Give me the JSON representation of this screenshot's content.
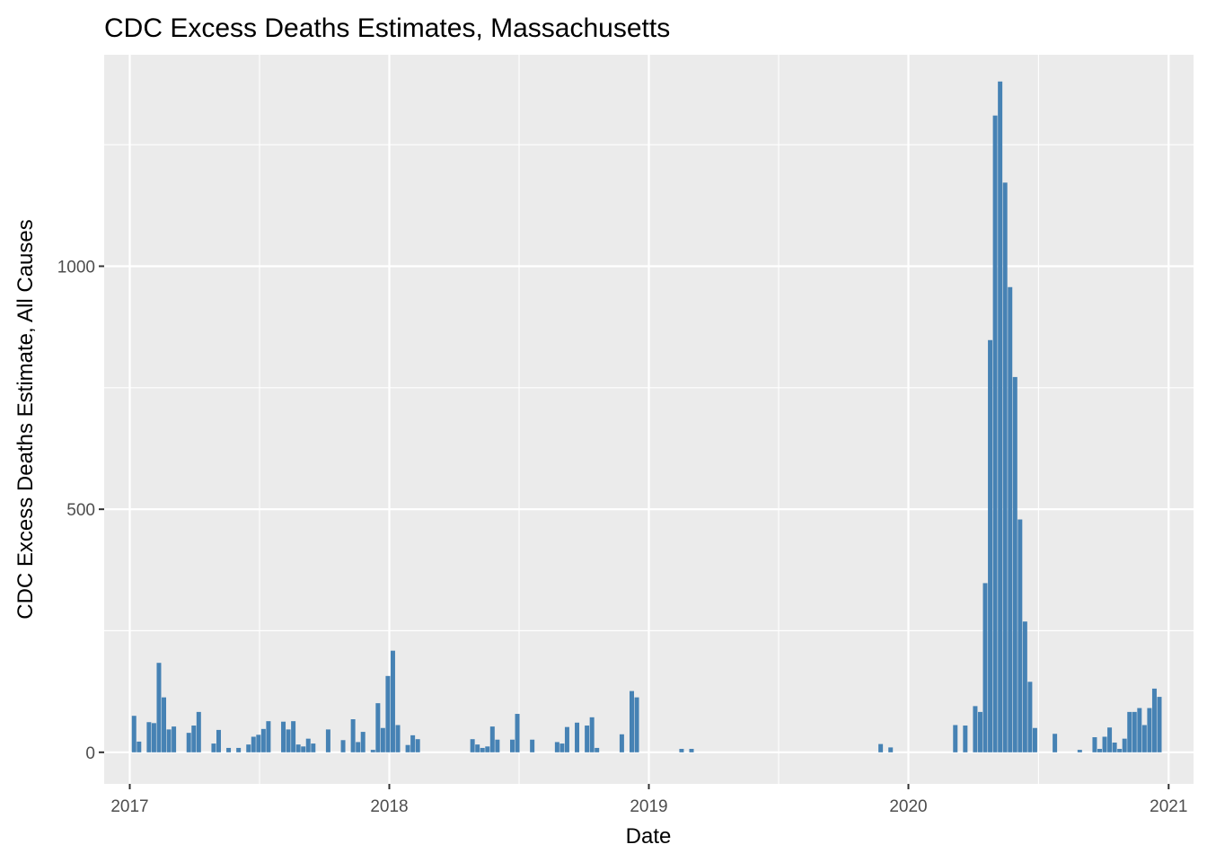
{
  "chart_data": {
    "type": "bar",
    "title": "CDC Excess Deaths Estimates, Massachusetts",
    "xlabel": "Date",
    "ylabel": "CDC Excess Deaths Estimate, All Causes",
    "x_ticks": [
      {
        "date": "2017-01-01",
        "label": "2017"
      },
      {
        "date": "2018-01-01",
        "label": "2018"
      },
      {
        "date": "2019-01-01",
        "label": "2019"
      },
      {
        "date": "2020-01-01",
        "label": "2020"
      },
      {
        "date": "2021-01-01",
        "label": "2021"
      }
    ],
    "y_ticks": [
      0,
      500,
      1000
    ],
    "xlim": [
      "2016-11-26",
      "2021-02-05"
    ],
    "ylim": [
      -65,
      1435
    ],
    "grid": true,
    "bar_color": "#4682B4",
    "panel_color": "#EBEBEB",
    "series": [
      {
        "dates": [
          "2017-01-07",
          "2017-01-14",
          "2017-01-28",
          "2017-02-04",
          "2017-02-11",
          "2017-02-18",
          "2017-02-25",
          "2017-03-04",
          "2017-03-25",
          "2017-04-01",
          "2017-04-08",
          "2017-04-29",
          "2017-05-06",
          "2017-05-20",
          "2017-06-03",
          "2017-06-17",
          "2017-06-24",
          "2017-07-01",
          "2017-07-08",
          "2017-07-15",
          "2017-08-05",
          "2017-08-12",
          "2017-08-19",
          "2017-08-26",
          "2017-09-02",
          "2017-09-09",
          "2017-09-16",
          "2017-10-07",
          "2017-10-28",
          "2017-11-11",
          "2017-11-18",
          "2017-11-25",
          "2017-12-09",
          "2017-12-16",
          "2017-12-23",
          "2017-12-30",
          "2018-01-06",
          "2018-01-13",
          "2018-01-27",
          "2018-02-03",
          "2018-02-10",
          "2018-04-28",
          "2018-05-05",
          "2018-05-12",
          "2018-05-19",
          "2018-05-26",
          "2018-06-02",
          "2018-06-23",
          "2018-06-30",
          "2018-07-21",
          "2018-08-25",
          "2018-09-01",
          "2018-09-08",
          "2018-09-22",
          "2018-10-06",
          "2018-10-13",
          "2018-10-20",
          "2018-11-24",
          "2018-12-08",
          "2018-12-15",
          "2019-02-16",
          "2019-03-02",
          "2019-11-23",
          "2019-12-07",
          "2020-03-07",
          "2020-03-21",
          "2020-04-04",
          "2020-04-11",
          "2020-04-18",
          "2020-04-25",
          "2020-05-02",
          "2020-05-09",
          "2020-05-16",
          "2020-05-23",
          "2020-05-30",
          "2020-06-06",
          "2020-06-13",
          "2020-06-20",
          "2020-06-27",
          "2020-07-25",
          "2020-08-29",
          "2020-09-19",
          "2020-09-26",
          "2020-10-03",
          "2020-10-10",
          "2020-10-17",
          "2020-10-24",
          "2020-10-31",
          "2020-11-07",
          "2020-11-14",
          "2020-11-21",
          "2020-11-28",
          "2020-12-05",
          "2020-12-12",
          "2020-12-19"
        ],
        "values": [
          75,
          22,
          62,
          60,
          184,
          113,
          47,
          53,
          40,
          55,
          83,
          18,
          46,
          9,
          9,
          16,
          32,
          36,
          48,
          64,
          63,
          47,
          64,
          16,
          12,
          28,
          18,
          47,
          25,
          68,
          21,
          42,
          5,
          101,
          50,
          157,
          209,
          56,
          15,
          35,
          27,
          27,
          16,
          9,
          12,
          53,
          26,
          26,
          79,
          26,
          21,
          18,
          52,
          61,
          55,
          72,
          9,
          37,
          126,
          113,
          7,
          7,
          17,
          10,
          56,
          55,
          95,
          83,
          348,
          848,
          1310,
          1380,
          1172,
          957,
          772,
          479,
          269,
          145,
          50,
          38,
          5,
          31,
          7,
          32,
          51,
          20,
          7,
          28,
          83,
          83,
          91,
          56,
          91,
          131,
          114
        ]
      }
    ]
  }
}
